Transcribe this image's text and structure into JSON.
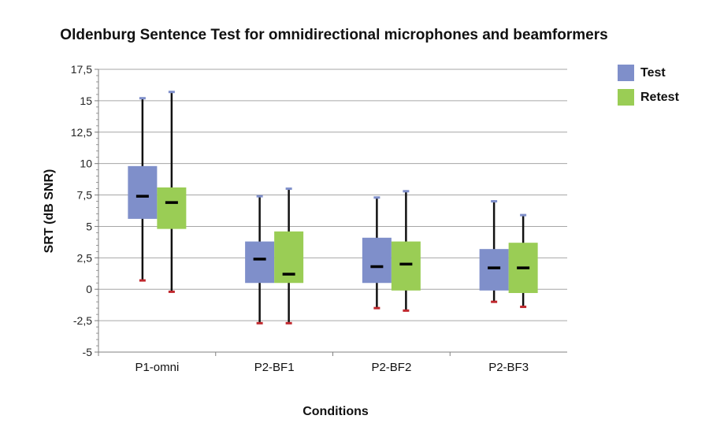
{
  "chart_data": {
    "type": "box",
    "title": "Oldenburg Sentence Test for omnidirectional microphones and beamformers",
    "xlabel": "Conditions",
    "ylabel": "SRT (dB SNR)",
    "ylim": [
      -5,
      17.5
    ],
    "yticks": [
      "17,5",
      "15",
      "12,5",
      "10",
      "7,5",
      "5",
      "2,5",
      "0",
      "-2,5",
      "-5"
    ],
    "ytick_values": [
      17.5,
      15,
      12.5,
      10,
      7.5,
      5,
      2.5,
      0,
      -2.5,
      -5
    ],
    "grid": true,
    "legend_position": "top-right",
    "categories": [
      "P1-omni",
      "P2-BF1",
      "P2-BF2",
      "P2-BF3"
    ],
    "series": [
      {
        "name": "Test",
        "color": "#7f8fca",
        "boxes": [
          {
            "min": 0.7,
            "q1": 5.6,
            "median": 7.4,
            "q3": 9.8,
            "max": 15.2
          },
          {
            "min": -2.7,
            "q1": 0.5,
            "median": 2.4,
            "q3": 3.8,
            "max": 7.4
          },
          {
            "min": -1.5,
            "q1": 0.5,
            "median": 1.8,
            "q3": 4.1,
            "max": 7.3
          },
          {
            "min": -1.0,
            "q1": -0.1,
            "median": 1.7,
            "q3": 3.2,
            "max": 7.0
          }
        ]
      },
      {
        "name": "Retest",
        "color": "#9acd55",
        "boxes": [
          {
            "min": -0.2,
            "q1": 4.8,
            "median": 6.9,
            "q3": 8.1,
            "max": 15.7
          },
          {
            "min": -2.7,
            "q1": 0.5,
            "median": 1.2,
            "q3": 4.6,
            "max": 8.0
          },
          {
            "min": -1.7,
            "q1": -0.1,
            "median": 2.0,
            "q3": 3.8,
            "max": 7.8
          },
          {
            "min": -1.4,
            "q1": -0.3,
            "median": 1.7,
            "q3": 3.7,
            "max": 5.9
          }
        ]
      }
    ],
    "colors": {
      "whisker": "#111111",
      "max_cap": "#7f8fca",
      "min_cap": "#c0272d",
      "grid": "#a6a6a6",
      "axis": "#808080"
    }
  }
}
